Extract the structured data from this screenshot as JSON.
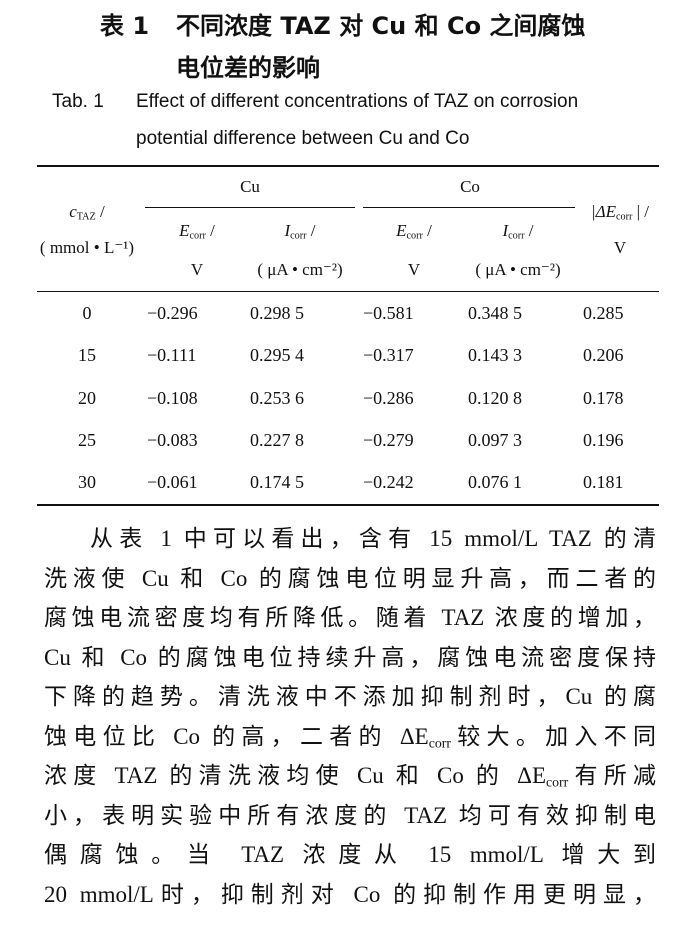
{
  "caption_cn": {
    "label": "表 1",
    "lines": [
      "不同浓度 TAZ 对 Cu 和 Co 之间腐蚀",
      "电位差的影响"
    ]
  },
  "caption_en": {
    "label": "Tab. 1",
    "lines": [
      "Effect of different concentrations of TAZ on corrosion",
      "potential difference between Cu and Co"
    ]
  },
  "table": {
    "first_column": {
      "sym": "c",
      "sub": "TAZ",
      "after": " /",
      "unit": "( mmol • L⁻¹)"
    },
    "groups": [
      {
        "name": "Cu",
        "columns": [
          {
            "sym": "E",
            "sub": "corr",
            "after": " /",
            "unit": "V"
          },
          {
            "sym": "I",
            "sub": "corr",
            "after": " /",
            "unit": "( μA • cm⁻²)"
          }
        ]
      },
      {
        "name": "Co",
        "columns": [
          {
            "sym": "E",
            "sub": "corr",
            "after": " /",
            "unit": "V"
          },
          {
            "sym": "I",
            "sub": "corr",
            "after": " /",
            "unit": "( μA • cm⁻²)"
          }
        ]
      }
    ],
    "last_column": {
      "sym": "|ΔE",
      "sub": "corr",
      "after": " | /",
      "unit": "V"
    },
    "rows": [
      [
        "0",
        "−0.296",
        "0.298 5",
        "−0.581",
        "0.348 5",
        "0.285"
      ],
      [
        "15",
        "−0.111",
        "0.295 4",
        "−0.317",
        "0.143 3",
        "0.206"
      ],
      [
        "20",
        "−0.108",
        "0.253 6",
        "−0.286",
        "0.120 8",
        "0.178"
      ],
      [
        "25",
        "−0.083",
        "0.227 8",
        "−0.279",
        "0.097 3",
        "0.196"
      ],
      [
        "30",
        "−0.061",
        "0.174 5",
        "−0.242",
        "0.076 1",
        "0.181"
      ]
    ]
  },
  "paragraph": [
    [
      "从表 1 中可以看出，含有 15 mmol/L TAZ 的清"
    ],
    [
      "洗液使 Cu 和 Co 的腐蚀电位明显升高，而二者的"
    ],
    [
      "腐蚀电流密度均有所降低。随着 TAZ 浓度的增加，"
    ],
    [
      "Cu 和 Co 的腐蚀电位持续升高，腐蚀电流密度保持"
    ],
    [
      "下降的趋势。清洗液中不添加抑制剂时，Cu 的腐"
    ],
    [
      "蚀电位比 Co 的高，二者的 ΔE",
      "corr",
      "较大。加入不同"
    ],
    [
      "浓度 TAZ 的清洗液均使 Cu 和 Co 的 ΔE",
      "corr",
      "有所减"
    ],
    [
      "小，表明实验中所有浓度的 TAZ 均可有效抑制电"
    ],
    [
      "偶腐蚀。当 TAZ 浓度从 15 mmol/L 增大到"
    ],
    [
      "20 mmol/L时，抑制剂对 Co 的抑制作用更明显，"
    ]
  ]
}
